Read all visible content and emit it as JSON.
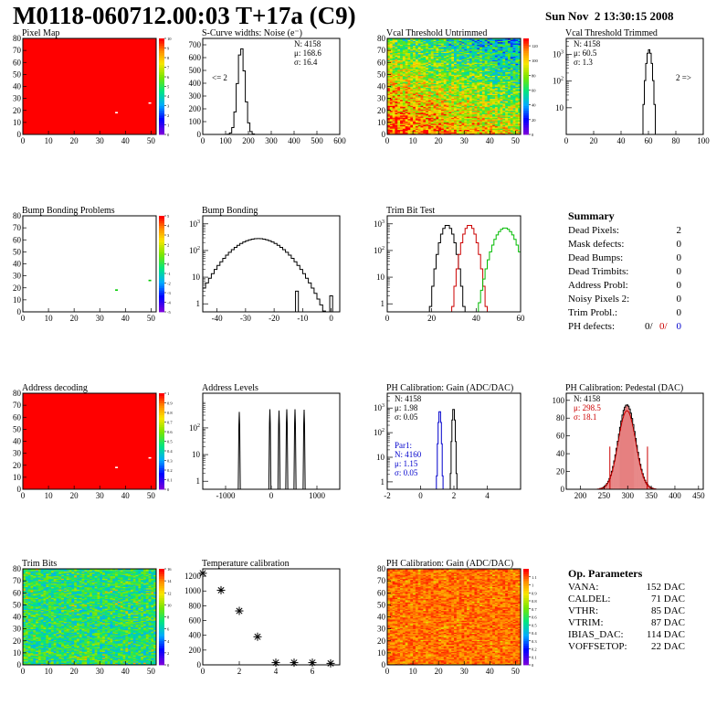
{
  "header": {
    "title": "M0118-060712.00:03 T+17a (C9)",
    "date": "Sun Nov  2 13:30:15 2008"
  },
  "chart_data": [
    {
      "id": "pixel_map",
      "type": "heatmap",
      "title": "Pixel Map",
      "xlim": [
        0,
        52
      ],
      "ylim": [
        0,
        80
      ],
      "xticks": [
        "0",
        "10",
        "20",
        "30",
        "40",
        "50"
      ],
      "yticks": [
        "0",
        "10",
        "20",
        "30",
        "40",
        "50",
        "60",
        "70",
        "80"
      ],
      "fill": "uniform_max",
      "zlim": [
        0,
        10
      ],
      "zticks": [
        "0",
        "1",
        "2",
        "3",
        "4",
        "5",
        "6",
        "7",
        "8",
        "9",
        "10"
      ],
      "dead_pixels": [
        [
          36,
          18
        ],
        [
          49,
          26
        ]
      ]
    },
    {
      "id": "scurve_noise",
      "type": "line",
      "title": "S-Curve widths: Noise (e⁻)",
      "xlim": [
        0,
        600
      ],
      "ylim": [
        0,
        750
      ],
      "xticks": [
        "0",
        "100",
        "200",
        "300",
        "400",
        "500",
        "600"
      ],
      "yticks": [
        "0",
        "100",
        "200",
        "300",
        "400",
        "500",
        "600",
        "700"
      ],
      "stats": [
        "N: 4158",
        "μ: 168.6",
        "σ: 16.4"
      ],
      "annotation": "<= 2",
      "gauss": {
        "mean": 168.6,
        "sigma": 16.4,
        "peak": 680,
        "bin": 10
      }
    },
    {
      "id": "vcal_untrimmed",
      "type": "heatmap",
      "title": "Vcal Threshold Untrimmed",
      "xlim": [
        0,
        52
      ],
      "ylim": [
        0,
        80
      ],
      "xticks": [
        "0",
        "10",
        "20",
        "30",
        "40",
        "50"
      ],
      "yticks": [
        "0",
        "10",
        "20",
        "30",
        "40",
        "50",
        "60",
        "70",
        "80"
      ],
      "fill": "gradient",
      "zlim": [
        0,
        130
      ],
      "zticks": [
        "0",
        "20",
        "40",
        "60",
        "80",
        "100",
        "120"
      ]
    },
    {
      "id": "vcal_trimmed",
      "type": "line",
      "title": "Vcal Threshold Trimmed",
      "xlim": [
        0,
        100
      ],
      "ylim": [
        1,
        4000
      ],
      "log_y": true,
      "xticks": [
        "0",
        "20",
        "40",
        "60",
        "80",
        "100"
      ],
      "ytick_exps": [
        1,
        2,
        3
      ],
      "stats": [
        "N: 4158",
        "μ: 60.5",
        "σ:  1.3"
      ],
      "annotation": "2 =>",
      "gauss": {
        "mean": 60.5,
        "sigma": 1.3,
        "peak": 1500,
        "bin": 1
      }
    },
    {
      "id": "bump_problems",
      "type": "heatmap",
      "title": "Bump Bonding Problems",
      "xlim": [
        0,
        52
      ],
      "ylim": [
        0,
        80
      ],
      "xticks": [
        "0",
        "10",
        "20",
        "30",
        "40",
        "50"
      ],
      "yticks": [
        "0",
        "10",
        "20",
        "30",
        "40",
        "50",
        "60",
        "70",
        "80"
      ],
      "fill": "empty",
      "zlim": [
        -5,
        5
      ],
      "zticks": [
        "-5",
        "-4",
        "-3",
        "-2",
        "-1",
        "0",
        "1",
        "2",
        "3",
        "4",
        "5"
      ],
      "dead_pixels": [
        [
          36,
          18
        ],
        [
          49,
          26
        ]
      ]
    },
    {
      "id": "bump_bonding",
      "type": "line",
      "title": "Bump Bonding",
      "xlim": [
        -45,
        3
      ],
      "ylim": [
        0.5,
        2000
      ],
      "log_y": true,
      "xticks": [
        "-40",
        "-30",
        "-20",
        "-10",
        "0"
      ],
      "ytick_exps": [
        0,
        1,
        2,
        3
      ],
      "gauss": {
        "mean": -25.5,
        "sigma": 6.5,
        "peak": 280,
        "bin": 1
      },
      "outliers": [
        [
          -12,
          3
        ],
        [
          0,
          2
        ]
      ]
    },
    {
      "id": "trim_bit_test",
      "type": "line",
      "title": "Trim Bit Test",
      "xlim": [
        0,
        60
      ],
      "ylim": [
        0.5,
        2000
      ],
      "log_y": true,
      "xticks": [
        "0",
        "20",
        "40",
        "60"
      ],
      "ytick_exps": [
        0,
        1,
        2,
        3
      ],
      "series": [
        {
          "mean": 27,
          "sigma": 2.0,
          "peak": 900,
          "color": "#000000"
        },
        {
          "mean": 37,
          "sigma": 2.0,
          "peak": 900,
          "color": "#cc0000"
        },
        {
          "mean": 53,
          "sigma": 3.2,
          "peak": 700,
          "color": "#00bb00"
        }
      ]
    },
    {
      "id": "address_decoding",
      "type": "heatmap",
      "title": "Address decoding",
      "xlim": [
        0,
        52
      ],
      "ylim": [
        0,
        80
      ],
      "xticks": [
        "0",
        "10",
        "20",
        "30",
        "40",
        "50"
      ],
      "yticks": [
        "0",
        "10",
        "20",
        "30",
        "40",
        "50",
        "60",
        "70",
        "80"
      ],
      "fill": "uniform_max",
      "zlim": [
        0,
        1
      ],
      "zticks": [
        "0",
        "0.1",
        "0.2",
        "0.3",
        "0.4",
        "0.5",
        "0.6",
        "0.7",
        "0.8",
        "0.9",
        "1"
      ],
      "dead_pixels": [
        [
          36,
          18
        ],
        [
          49,
          26
        ]
      ]
    },
    {
      "id": "address_levels",
      "type": "line",
      "title": "Address Levels",
      "xlim": [
        -1500,
        1500
      ],
      "ylim": [
        0.5,
        2000
      ],
      "log_y": true,
      "xticks": [
        "-1000",
        "0",
        "1000"
      ],
      "ytick_exps": [
        0,
        1,
        2
      ],
      "spikes": [
        [
          -700,
          400
        ],
        [
          -30,
          500
        ],
        [
          170,
          450
        ],
        [
          340,
          500
        ],
        [
          520,
          500
        ],
        [
          720,
          480
        ]
      ]
    },
    {
      "id": "ph_gain",
      "type": "line",
      "title": "PH Calibration: Gain (ADC/DAC)",
      "xlim": [
        -2,
        6
      ],
      "ylim": [
        0.5,
        4000
      ],
      "log_y": true,
      "xticks": [
        "-2",
        "0",
        "2",
        "4"
      ],
      "ytick_exps": [
        0,
        1,
        2,
        3
      ],
      "stats": [
        "N: 4158",
        "μ: 1.98",
        "σ: 0.05"
      ],
      "stats2": [
        "Par1:",
        "N: 4160",
        "μ: 1.15",
        "σ: 0.05"
      ],
      "series": [
        {
          "mean": 1.98,
          "sigma": 0.05,
          "peak": 1000,
          "color": "#000000"
        },
        {
          "mean": 1.15,
          "sigma": 0.05,
          "peak": 800,
          "color": "#0000cc"
        }
      ]
    },
    {
      "id": "ph_pedestal",
      "type": "bar",
      "title": "PH Calibration: Pedestal (DAC)",
      "xlim": [
        170,
        460
      ],
      "ylim": [
        0,
        108
      ],
      "xticks": [
        "200",
        "250",
        "300",
        "350",
        "400",
        "450"
      ],
      "yticks": [
        "0",
        "20",
        "40",
        "60",
        "80",
        "100"
      ],
      "stats": [
        "N: 4158",
        "μ: 298.5",
        "σ: 18.1"
      ],
      "gauss": {
        "mean": 298.5,
        "sigma": 18.1,
        "peak": 95,
        "bin": 2.5
      }
    },
    {
      "id": "trim_bits",
      "type": "heatmap",
      "title": "Trim Bits",
      "xlim": [
        0,
        52
      ],
      "ylim": [
        0,
        80
      ],
      "xticks": [
        "0",
        "10",
        "20",
        "30",
        "40",
        "50"
      ],
      "yticks": [
        "0",
        "10",
        "20",
        "30",
        "40",
        "50",
        "60",
        "70",
        "80"
      ],
      "fill": "trim",
      "zlim": [
        0,
        16
      ],
      "zticks": [
        "0",
        "2",
        "4",
        "6",
        "8",
        "10",
        "12",
        "14",
        "16"
      ]
    },
    {
      "id": "temperature_calibration",
      "type": "scatter",
      "title": "Temperature calibration",
      "xlim": [
        0,
        7.5
      ],
      "ylim": [
        0,
        1300
      ],
      "xticks": [
        "0",
        "2",
        "4",
        "6"
      ],
      "yticks": [
        "0",
        "200",
        "400",
        "600",
        "800",
        "1000",
        "1200"
      ],
      "points": [
        [
          0,
          1240
        ],
        [
          1,
          1010
        ],
        [
          2,
          730
        ],
        [
          3,
          380
        ],
        [
          4,
          30
        ],
        [
          5,
          30
        ],
        [
          6,
          30
        ],
        [
          7,
          20
        ]
      ]
    },
    {
      "id": "ph_gain_map",
      "type": "heatmap",
      "title": "PH Calibration: Gain (ADC/DAC)",
      "xlim": [
        0,
        52
      ],
      "ylim": [
        0,
        80
      ],
      "xticks": [
        "0",
        "10",
        "20",
        "30",
        "40",
        "50"
      ],
      "yticks": [
        "0",
        "10",
        "20",
        "30",
        "40",
        "50",
        "60",
        "70",
        "80"
      ],
      "fill": "gain",
      "zlim": [
        0,
        1.2
      ],
      "zticks": [
        "0",
        "0.1",
        "0.2",
        "0.3",
        "0.4",
        "0.5",
        "0.6",
        "0.7",
        "0.8",
        "0.9",
        "1",
        "1.1"
      ]
    }
  ],
  "summary": {
    "title": "Summary",
    "rows": [
      {
        "label": "Dead Pixels:",
        "value": "2"
      },
      {
        "label": "Mask defects:",
        "value": "0"
      },
      {
        "label": "Dead Bumps:",
        "value": "0"
      },
      {
        "label": "Dead Trimbits:",
        "value": "0"
      },
      {
        "label": "Address Probl:",
        "value": "0"
      },
      {
        "label": "Noisy Pixels 2:",
        "value": "0"
      },
      {
        "label": "Trim Probl.:",
        "value": "0"
      }
    ],
    "ph_label": "PH defects:",
    "ph_values": [
      "0/",
      "0/",
      "0"
    ],
    "ph_colors": [
      "#000000",
      "#cc0000",
      "#0000cc"
    ]
  },
  "op_params": {
    "title": "Op. Parameters",
    "rows": [
      {
        "label": "VANA:",
        "value": "152 DAC"
      },
      {
        "label": "CALDEL:",
        "value": "71 DAC"
      },
      {
        "label": "VTHR:",
        "value": "85 DAC"
      },
      {
        "label": "VTRIM:",
        "value": "87 DAC"
      },
      {
        "label": "IBIAS_DAC:",
        "value": "114 DAC"
      },
      {
        "label": "VOFFSETOP:",
        "value": "22 DAC"
      }
    ]
  }
}
